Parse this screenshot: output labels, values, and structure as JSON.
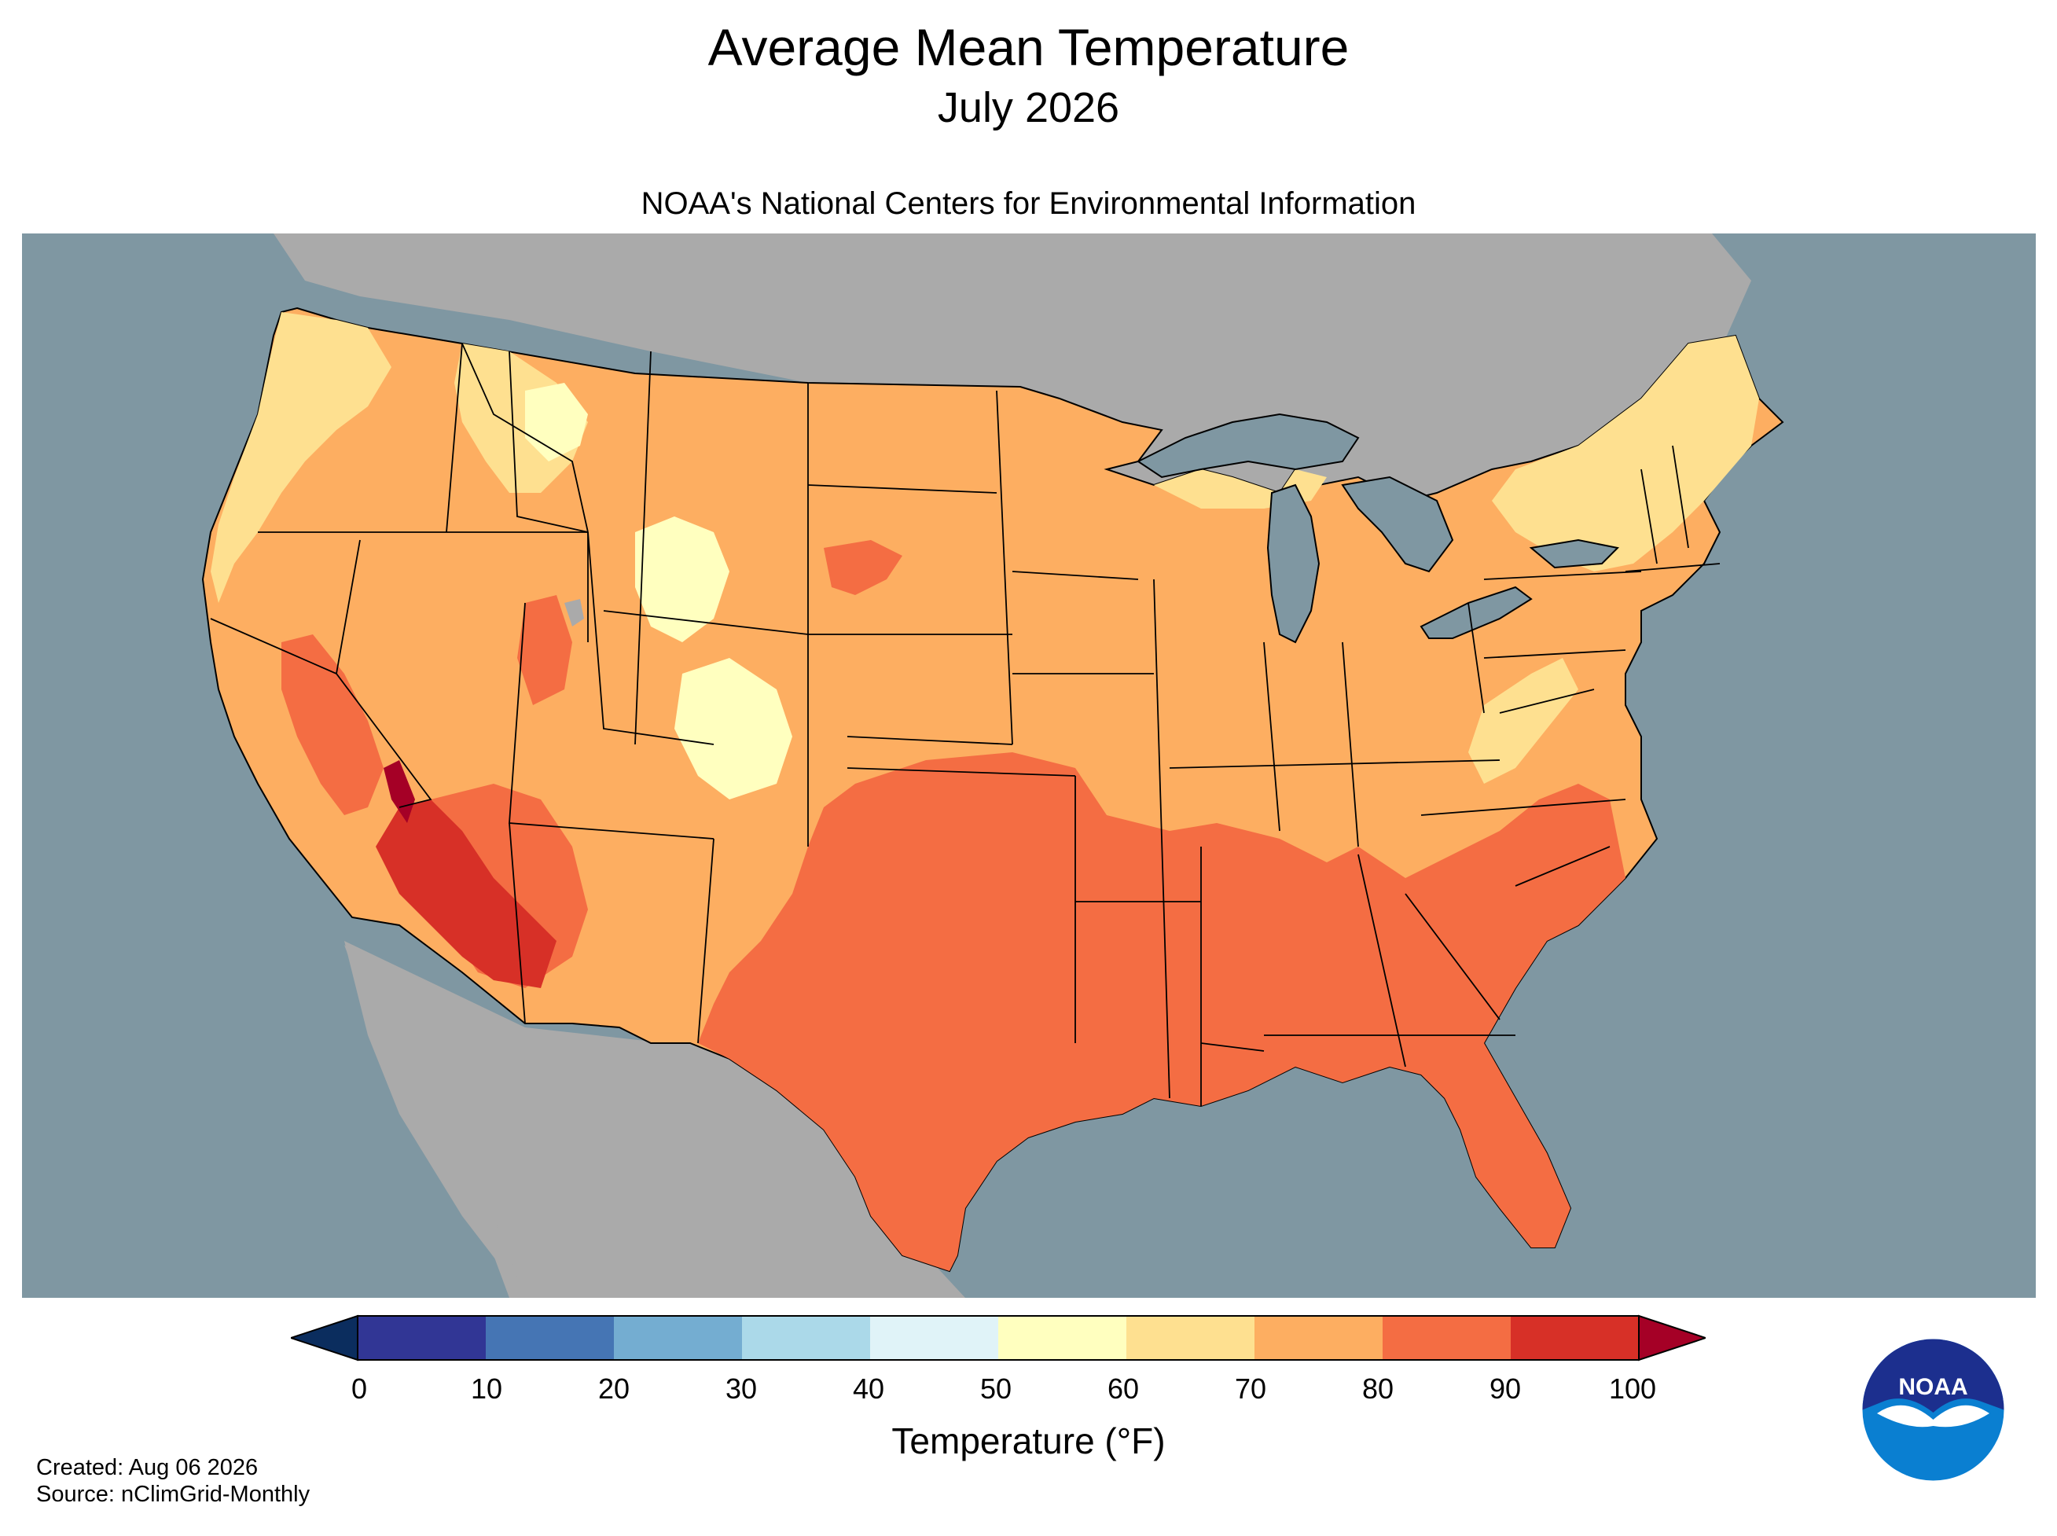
{
  "title": "Average Mean Temperature",
  "subtitle": "July 2026",
  "credit": "NOAA's National Centers for Environmental Information",
  "map": {
    "region": "Contiguous United States",
    "variable": "Average Mean Temperature",
    "ocean_color": "#7f97a2",
    "land_outside_color": "#aaaaaa",
    "regional_levels": [
      {
        "region": "Pacific Northwest coast",
        "bin": "60-70"
      },
      {
        "region": "Northern Rockies high terrain",
        "bin": "50-60"
      },
      {
        "region": "Northern Plains & Upper Midwest",
        "bin": "70-80"
      },
      {
        "region": "Northeast & New England",
        "bin": "60-70"
      },
      {
        "region": "Central Valley California",
        "bin": "80-90"
      },
      {
        "region": "Southern Plains & Texas",
        "bin": "80-90"
      },
      {
        "region": "Gulf Coast & Southeast",
        "bin": "80-90"
      },
      {
        "region": "Lower Colorado River / SW Arizona",
        "bin": "90-100"
      },
      {
        "region": "Florida",
        "bin": "80-90"
      }
    ]
  },
  "colorbar": {
    "ticks": [
      "0",
      "10",
      "20",
      "30",
      "40",
      "50",
      "60",
      "70",
      "80",
      "90",
      "100"
    ],
    "bins": [
      "#313695",
      "#4575b4",
      "#74add1",
      "#abd9e9",
      "#e0f3f8",
      "#ffffbf",
      "#fee090",
      "#fdae61",
      "#f46d43",
      "#d73027"
    ],
    "under_color": "#0b2d5e",
    "over_color": "#a50026",
    "label": "Temperature (°F)"
  },
  "footer": {
    "created": "Created: Aug 06 2026",
    "source": "Source: nClimGrid-Monthly"
  },
  "logo": {
    "text": "NOAA",
    "icon": "noaa-logo-icon",
    "colors": {
      "top": "#1c2f8e",
      "bottom": "#0a7fd1",
      "bird": "#ffffff"
    }
  }
}
